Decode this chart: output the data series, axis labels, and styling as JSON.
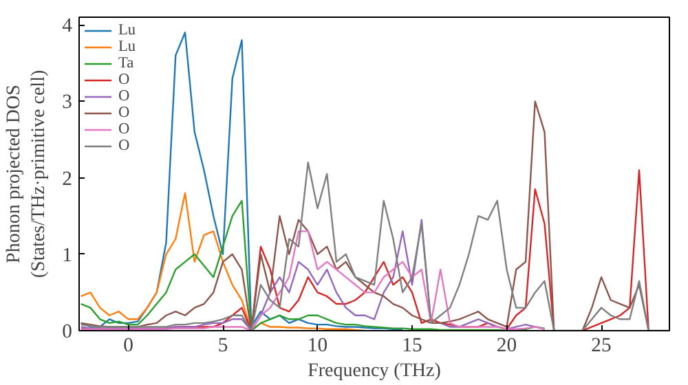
{
  "chart_data": {
    "type": "line",
    "xlabel": "Frequency (THz)",
    "ylabel": "Phonon projected DOS\n(States/THz·primitive cell)",
    "x": [
      -2.5,
      -2,
      -1.5,
      -1,
      -0.5,
      0,
      0.5,
      1,
      1.5,
      2,
      2.5,
      3,
      3.5,
      4,
      4.5,
      5,
      5.5,
      6,
      6.5,
      7,
      7.5,
      8,
      8.5,
      9,
      9.5,
      10,
      10.5,
      11,
      11.5,
      12,
      12.5,
      13,
      13.5,
      14,
      14.5,
      15,
      15.5,
      16,
      16.5,
      17,
      17.5,
      18,
      18.5,
      19,
      19.5,
      20,
      20.5,
      21,
      21.5,
      22,
      22.5,
      23,
      23.5,
      24,
      24.5,
      25,
      25.5,
      26,
      26.5,
      27,
      27.5,
      28,
      28.5
    ],
    "xlim": [
      -2.6,
      28.6
    ],
    "ylim": [
      0,
      4.1
    ],
    "xticks": [
      0,
      5,
      10,
      15,
      20,
      25
    ],
    "yticks": [
      0,
      1,
      2,
      3,
      4
    ],
    "grid": false,
    "legend": "top left",
    "line_style": "solid",
    "series": [
      {
        "name": "Lu",
        "color": "#1f77b4",
        "values": [
          0.1,
          0.05,
          0.05,
          0.15,
          0.1,
          0.1,
          0.12,
          0.3,
          0.5,
          1.15,
          3.6,
          3.9,
          2.6,
          2.1,
          1.5,
          1.0,
          3.3,
          3.8,
          0.05,
          0.25,
          0.15,
          0.2,
          0.1,
          0.15,
          0.1,
          0.08,
          0.08,
          0.06,
          0.05,
          0.05,
          0.04,
          0.03,
          0.03,
          0.02,
          0.02,
          null,
          null,
          null,
          null,
          null,
          null,
          null,
          null,
          null,
          null,
          null,
          null,
          null,
          null,
          null,
          null,
          null,
          null,
          null,
          null,
          null,
          null,
          null,
          null,
          null,
          null,
          null,
          null
        ]
      },
      {
        "name": "Lu",
        "color": "#ff7f0e",
        "values": [
          0.45,
          0.5,
          0.3,
          0.2,
          0.25,
          0.15,
          0.15,
          0.3,
          0.5,
          1.0,
          1.2,
          1.8,
          0.9,
          1.25,
          1.3,
          0.9,
          0.6,
          0.4,
          0.0,
          0.1,
          0.05,
          0.05,
          0.04,
          0.04,
          0.03,
          0.03,
          0.02,
          0.02,
          0.02,
          0.01,
          0,
          null,
          null,
          null,
          null,
          null,
          null,
          null,
          null,
          null,
          null,
          null,
          null,
          null,
          null,
          null,
          null,
          null,
          null,
          null,
          null,
          null,
          null,
          null,
          null,
          null,
          null,
          null,
          null,
          null,
          null,
          null,
          null
        ]
      },
      {
        "name": "Ta",
        "color": "#2ca02c",
        "values": [
          0.35,
          0.3,
          0.15,
          0.1,
          0.12,
          0.08,
          0.08,
          0.2,
          0.35,
          0.5,
          0.8,
          0.9,
          1.0,
          0.85,
          0.7,
          1.1,
          1.5,
          1.7,
          0.0,
          0.1,
          0.15,
          0.2,
          0.15,
          0.15,
          0.2,
          0.2,
          0.15,
          0.1,
          0.08,
          0.08,
          0.06,
          0.05,
          0.04,
          0.03,
          0.03,
          0.02,
          0.02,
          0.02,
          0.01,
          0.01,
          0.01,
          0.01,
          0.01,
          0.01,
          0.01,
          0,
          0,
          0.02,
          0.05,
          0.03,
          null,
          null,
          null,
          null,
          null,
          null,
          null,
          null,
          null,
          null,
          null,
          null,
          null
        ]
      },
      {
        "name": "O",
        "color": "#d62728",
        "values": [
          0.03,
          0.02,
          0.02,
          0.02,
          0.02,
          0.02,
          0.02,
          0.02,
          0.02,
          0.03,
          0.05,
          0.05,
          0.05,
          0.05,
          0.05,
          0.1,
          0.2,
          0.3,
          0.0,
          1.1,
          0.8,
          0.3,
          0.25,
          0.4,
          0.7,
          0.5,
          0.45,
          0.35,
          0.35,
          0.4,
          0.5,
          0.7,
          0.9,
          0.6,
          0.7,
          0.5,
          0.1,
          0.15,
          0.1,
          0.08,
          0.05,
          0.05,
          0.05,
          0.1,
          0.05,
          0.02,
          0.2,
          0.3,
          1.85,
          1.4,
          0,
          null,
          null,
          0,
          0.05,
          0.1,
          0.15,
          0.2,
          0.3,
          2.1,
          0,
          null,
          null
        ]
      },
      {
        "name": "O",
        "color": "#9467bd",
        "values": [
          0.05,
          0.03,
          0.03,
          0.03,
          0.03,
          0.03,
          0.03,
          0.03,
          0.03,
          0.03,
          0.05,
          0.05,
          0.05,
          0.08,
          0.1,
          0.1,
          0.15,
          0.15,
          0.0,
          0.2,
          0.5,
          0.7,
          0.5,
          0.9,
          0.8,
          0.6,
          0.8,
          0.5,
          0.3,
          0.2,
          0.2,
          0.15,
          0.5,
          0.7,
          1.3,
          0.6,
          1.45,
          0.1,
          0.1,
          0.05,
          0.05,
          0.1,
          0.15,
          0.1,
          0.05,
          0.02,
          0.05,
          0.08,
          0.05,
          0.02,
          null,
          null,
          null,
          null,
          null,
          null,
          null,
          null,
          null,
          null,
          null,
          null,
          null
        ]
      },
      {
        "name": "O",
        "color": "#8c564b",
        "values": [
          0.1,
          0.08,
          0.06,
          0.05,
          0.05,
          0.05,
          0.05,
          0.08,
          0.1,
          0.2,
          0.25,
          0.2,
          0.3,
          0.35,
          0.5,
          0.9,
          1.0,
          0.8,
          0.0,
          1.0,
          0.5,
          1.5,
          1.0,
          1.45,
          1.3,
          1.0,
          1.1,
          0.8,
          0.9,
          0.7,
          0.6,
          0.5,
          0.45,
          0.35,
          0.3,
          0.2,
          0.15,
          0.1,
          0.1,
          0.12,
          0.15,
          0.2,
          0.25,
          0.15,
          0.1,
          0.05,
          0.8,
          0.9,
          3.0,
          2.6,
          0,
          null,
          null,
          0,
          0.3,
          0.7,
          0.4,
          0.35,
          0.3,
          0.6,
          0,
          null,
          null
        ]
      },
      {
        "name": "O",
        "color": "#e377c2",
        "values": [
          0.02,
          0.02,
          0.02,
          0.02,
          0.02,
          0.02,
          0.02,
          0.02,
          0.02,
          0.02,
          0.03,
          0.03,
          0.03,
          0.03,
          0.05,
          0.05,
          0.05,
          0.05,
          0.0,
          0.2,
          0.3,
          0.5,
          0.7,
          1.3,
          1.3,
          0.8,
          0.9,
          0.8,
          0.7,
          0.6,
          0.5,
          0.5,
          0.7,
          0.8,
          0.9,
          0.7,
          0.8,
          0.1,
          0.8,
          0.1,
          0.05,
          0.05,
          0.05,
          0.05,
          0.05,
          0.02,
          0.02,
          0.03,
          0.05,
          0.02,
          null,
          null,
          null,
          null,
          null,
          null,
          null,
          null,
          null,
          null,
          null,
          null,
          null
        ]
      },
      {
        "name": "O",
        "color": "#7f7f7f",
        "values": [
          0.08,
          0.06,
          0.05,
          0.05,
          0.05,
          0.05,
          0.05,
          0.05,
          0.05,
          0.05,
          0.08,
          0.08,
          0.1,
          0.1,
          0.12,
          0.15,
          0.2,
          0.2,
          0.0,
          0.6,
          0.4,
          0.3,
          1.2,
          1.1,
          2.2,
          1.6,
          2.05,
          0.9,
          1.0,
          0.7,
          0.65,
          0.6,
          1.7,
          1.2,
          0.5,
          0.7,
          1.4,
          0.1,
          0.2,
          0.3,
          0.6,
          1.0,
          1.5,
          1.45,
          1.7,
          0.8,
          0.3,
          0.3,
          0.5,
          0.65,
          0,
          0,
          0,
          0,
          0.15,
          0.3,
          0.2,
          0.15,
          0.15,
          0.65,
          0,
          0,
          0
        ]
      }
    ]
  }
}
